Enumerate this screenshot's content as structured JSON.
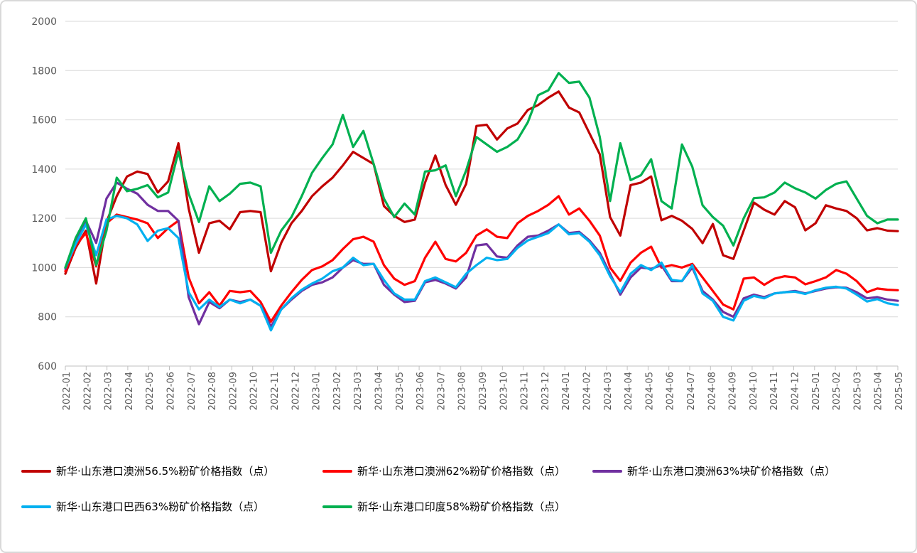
{
  "chart_data": {
    "type": "line",
    "title": "",
    "xlabel": "",
    "ylabel": "",
    "ylim": [
      600,
      2000
    ],
    "yticks": [
      600,
      800,
      1000,
      1200,
      1400,
      1600,
      1800,
      2000
    ],
    "grid": "horizontal",
    "legend_position": "bottom-left-two-rows",
    "axis_label_color": "#595959",
    "gridline_color": "#d9d9d9",
    "axis_line_color": "#bfbfbf",
    "sampling": "two points per labeled month (semi-monthly estimates read from plot)",
    "x_labels": [
      "2022-01",
      "2022-02",
      "2022-03",
      "2022-04",
      "2022-05",
      "2022-06",
      "2022-07",
      "2022-08",
      "2022-09",
      "2022-10",
      "2022-11",
      "2022-12",
      "2023-01",
      "2023-02",
      "2023-03",
      "2023-04",
      "2023-05",
      "2023-06",
      "2023-07",
      "2023-08",
      "2023-09",
      "2023-10",
      "2023-11",
      "2023-12",
      "2024-01",
      "2024-02",
      "2024-03",
      "2024-04",
      "2024-05",
      "2024-06",
      "2024-07",
      "2024-08",
      "2024-09",
      "2024-10",
      "2024-11",
      "2024-12",
      "2025-01",
      "2025-02",
      "2025-03",
      "2025-04",
      "2025-05"
    ],
    "series": [
      {
        "id": "au-56-5-fines",
        "name": "新华·山东港口澳洲56.5%粉矿价格指数（点）",
        "color": "#c00000",
        "values": [
          975,
          1080,
          1150,
          935,
          1185,
          1290,
          1370,
          1390,
          1380,
          1305,
          1350,
          1505,
          1240,
          1060,
          1180,
          1190,
          1155,
          1225,
          1230,
          1225,
          985,
          1100,
          1180,
          1230,
          1290,
          1330,
          1365,
          1415,
          1470,
          1445,
          1420,
          1250,
          1210,
          1185,
          1195,
          1345,
          1455,
          1335,
          1255,
          1340,
          1575,
          1580,
          1520,
          1565,
          1585,
          1640,
          1660,
          1690,
          1715,
          1650,
          1630,
          1545,
          1460,
          1205,
          1130,
          1335,
          1345,
          1370,
          1192,
          1210,
          1190,
          1157,
          1099,
          1177,
          1050,
          1035,
          1150,
          1264,
          1235,
          1215,
          1270,
          1245,
          1151,
          1180,
          1253,
          1240,
          1230,
          1200,
          1151,
          1160,
          1150,
          1148
        ]
      },
      {
        "id": "au-62-fines",
        "name": "新华·山东港口澳洲62%粉矿价格指数（点）",
        "color": "#ff0000",
        "values": [
          985,
          1090,
          1140,
          1005,
          1180,
          1215,
          1205,
          1195,
          1180,
          1120,
          1160,
          1190,
          960,
          855,
          900,
          845,
          905,
          900,
          905,
          860,
          780,
          845,
          900,
          950,
          990,
          1005,
          1030,
          1075,
          1115,
          1125,
          1105,
          1010,
          955,
          930,
          945,
          1040,
          1105,
          1035,
          1025,
          1060,
          1130,
          1155,
          1125,
          1120,
          1180,
          1210,
          1230,
          1255,
          1290,
          1215,
          1240,
          1190,
          1130,
          1000,
          946,
          1020,
          1060,
          1085,
          1000,
          1010,
          1000,
          1015,
          960,
          905,
          850,
          830,
          955,
          960,
          930,
          955,
          965,
          960,
          932,
          945,
          960,
          990,
          975,
          945,
          900,
          915,
          910,
          908
        ]
      },
      {
        "id": "au-63-lump",
        "name": "新华·山东港口澳洲63%块矿价格指数（点）",
        "color": "#7030a0",
        "values": [
          995,
          1100,
          1190,
          1100,
          1280,
          1345,
          1320,
          1300,
          1255,
          1230,
          1230,
          1190,
          880,
          770,
          860,
          835,
          870,
          860,
          870,
          845,
          760,
          830,
          870,
          905,
          930,
          940,
          960,
          1000,
          1030,
          1015,
          1015,
          930,
          890,
          860,
          865,
          940,
          950,
          935,
          915,
          960,
          1090,
          1095,
          1045,
          1040,
          1090,
          1125,
          1130,
          1150,
          1175,
          1140,
          1145,
          1110,
          1060,
          975,
          890,
          960,
          1000,
          995,
          1010,
          945,
          945,
          1000,
          905,
          870,
          820,
          800,
          875,
          890,
          880,
          895,
          900,
          905,
          895,
          905,
          915,
          920,
          918,
          900,
          875,
          880,
          870,
          865
        ]
      },
      {
        "id": "brazil-63-fines",
        "name": "新华·山东港口巴西63%粉矿价格指数（点）",
        "color": "#00b0f0",
        "values": [
          1000,
          1095,
          1175,
          1050,
          1195,
          1210,
          1200,
          1175,
          1108,
          1150,
          1160,
          1120,
          900,
          830,
          870,
          840,
          870,
          855,
          870,
          845,
          745,
          830,
          875,
          910,
          935,
          955,
          985,
          1000,
          1040,
          1010,
          1015,
          950,
          895,
          870,
          870,
          945,
          960,
          940,
          920,
          975,
          1010,
          1040,
          1030,
          1035,
          1080,
          1110,
          1125,
          1140,
          1175,
          1135,
          1140,
          1105,
          1050,
          965,
          900,
          975,
          1010,
          990,
          1020,
          950,
          945,
          1010,
          895,
          865,
          800,
          785,
          865,
          885,
          875,
          895,
          900,
          902,
          893,
          908,
          918,
          922,
          915,
          890,
          862,
          872,
          855,
          848
        ]
      },
      {
        "id": "india-58-fines",
        "name": "新华·山东港口印度58%粉矿价格指数（点）",
        "color": "#00b050",
        "values": [
          1000,
          1120,
          1200,
          1010,
          1150,
          1365,
          1310,
          1320,
          1335,
          1285,
          1305,
          1470,
          1300,
          1185,
          1330,
          1270,
          1300,
          1340,
          1345,
          1330,
          1060,
          1150,
          1205,
          1290,
          1385,
          1445,
          1500,
          1620,
          1490,
          1555,
          1420,
          1280,
          1205,
          1260,
          1215,
          1390,
          1395,
          1415,
          1290,
          1395,
          1530,
          1500,
          1470,
          1490,
          1520,
          1590,
          1700,
          1720,
          1790,
          1750,
          1755,
          1690,
          1530,
          1270,
          1505,
          1355,
          1375,
          1440,
          1270,
          1240,
          1500,
          1410,
          1253,
          1205,
          1170,
          1090,
          1200,
          1282,
          1285,
          1305,
          1345,
          1322,
          1305,
          1280,
          1315,
          1340,
          1350,
          1280,
          1210,
          1180,
          1195,
          1195
        ]
      }
    ]
  }
}
